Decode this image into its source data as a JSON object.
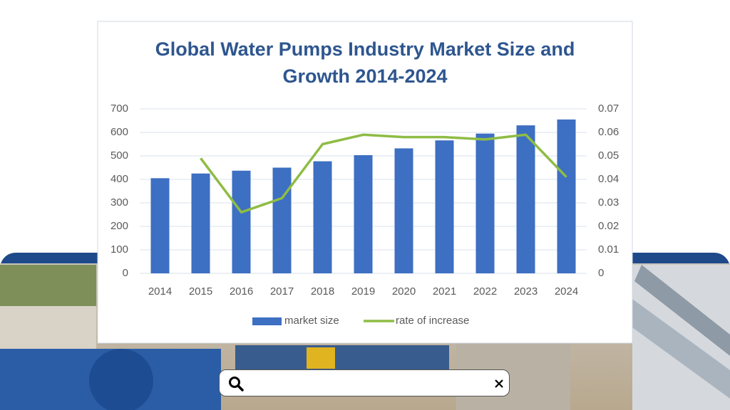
{
  "chart_data": {
    "type": "bar-line",
    "title": "Global Water Pumps Industry Market Size and Growth 2014-2024",
    "categories": [
      "2014",
      "2015",
      "2016",
      "2017",
      "2018",
      "2019",
      "2020",
      "2021",
      "2022",
      "2023",
      "2024"
    ],
    "series": [
      {
        "name": "market size",
        "type": "bar",
        "color": "#3d6fc2",
        "values": [
          405,
          425,
          437,
          450,
          477,
          503,
          532,
          566,
          595,
          630,
          655
        ]
      },
      {
        "name": "rate of increase",
        "type": "line",
        "axis": "y2",
        "color": "#8fbc45",
        "values": [
          null,
          0.049,
          0.026,
          0.032,
          0.055,
          0.059,
          0.058,
          0.058,
          0.057,
          0.059,
          0.041
        ]
      }
    ],
    "ylim": [
      0,
      700
    ],
    "yticks": [
      0,
      100,
      200,
      300,
      400,
      500,
      600,
      700
    ],
    "y2lim": [
      0,
      0.07
    ],
    "y2ticks": [
      0,
      0.01,
      0.02,
      0.03,
      0.04,
      0.05,
      0.06,
      0.07
    ],
    "grid": true,
    "legend": "bottom"
  }
}
